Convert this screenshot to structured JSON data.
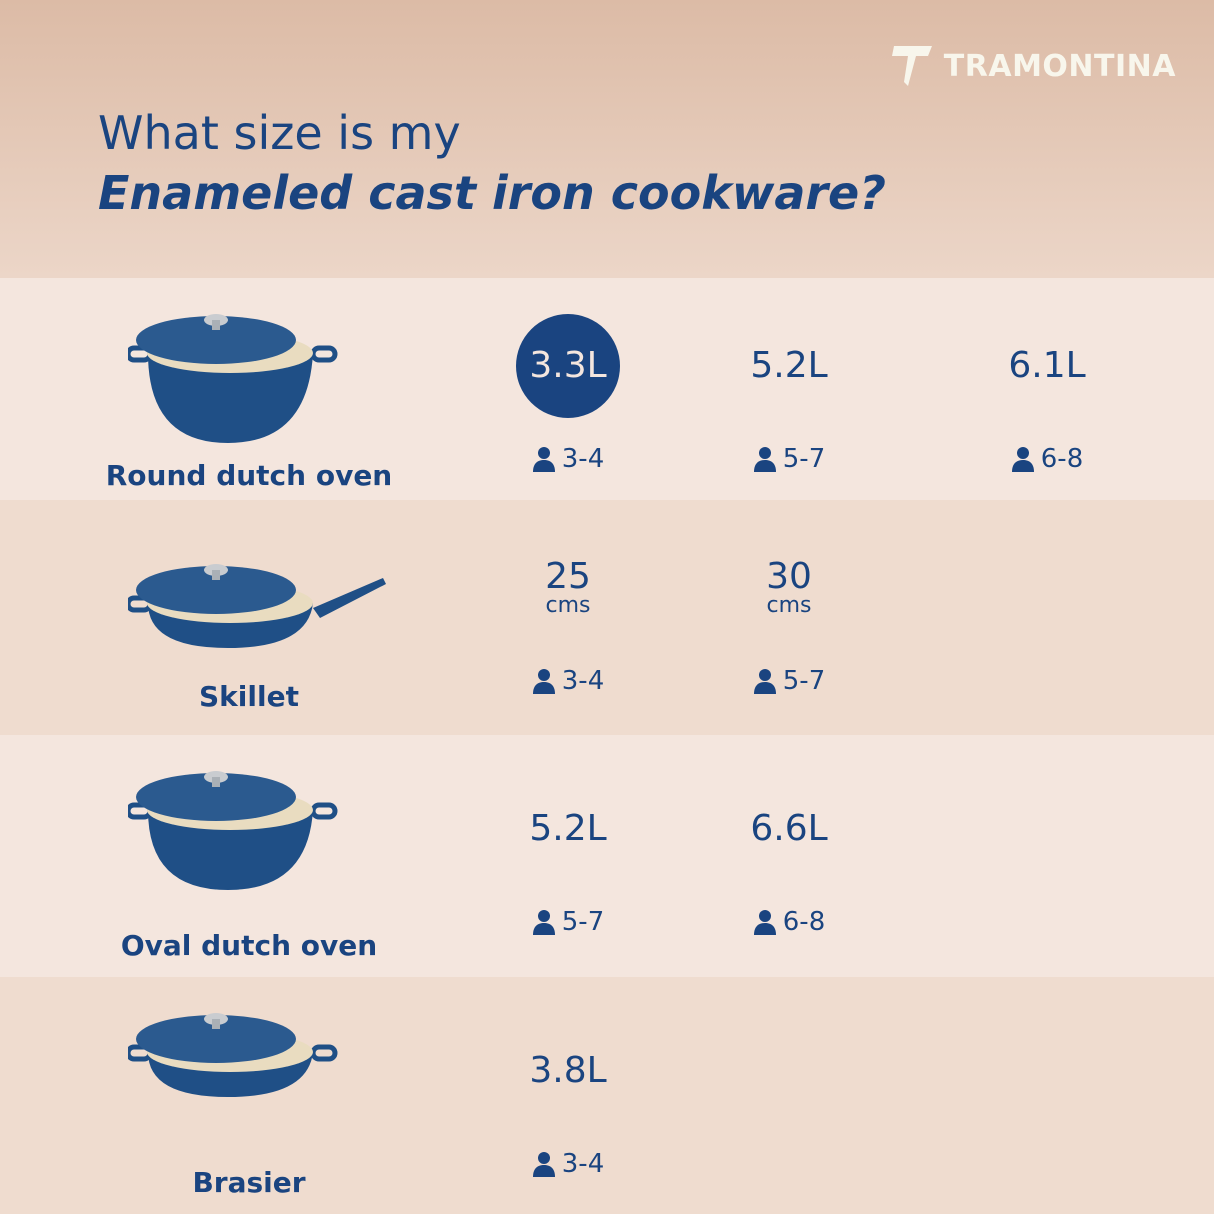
{
  "brand": {
    "name": "TRAMONTINA",
    "logo_letter": "T"
  },
  "title": {
    "line1": "What size is my",
    "line2": "Enameled cast iron cookware?"
  },
  "colors": {
    "navy": "#1a4480",
    "row_light": "#f4e6de",
    "row_dark": "#efdccf",
    "logo": "#f8f6ec"
  },
  "rows": [
    {
      "name": "Round dutch oven",
      "pot": "round",
      "options": [
        {
          "size": "3.3L",
          "people": "3-4",
          "highlighted": true
        },
        {
          "size": "5.2L",
          "people": "5-7"
        },
        {
          "size": "6.1L",
          "people": "6-8"
        }
      ]
    },
    {
      "name": "Skillet",
      "pot": "skillet",
      "options": [
        {
          "size": "25",
          "unit": "cms",
          "people": "3-4"
        },
        {
          "size": "30",
          "unit": "cms",
          "people": "5-7"
        }
      ]
    },
    {
      "name": "Oval dutch oven",
      "pot": "oval",
      "options": [
        {
          "size": "5.2L",
          "people": "5-7"
        },
        {
          "size": "6.6L",
          "people": "6-8"
        }
      ]
    },
    {
      "name": "Brasier",
      "pot": "brasier",
      "options": [
        {
          "size": "3.8L",
          "people": "3-4"
        }
      ]
    }
  ]
}
